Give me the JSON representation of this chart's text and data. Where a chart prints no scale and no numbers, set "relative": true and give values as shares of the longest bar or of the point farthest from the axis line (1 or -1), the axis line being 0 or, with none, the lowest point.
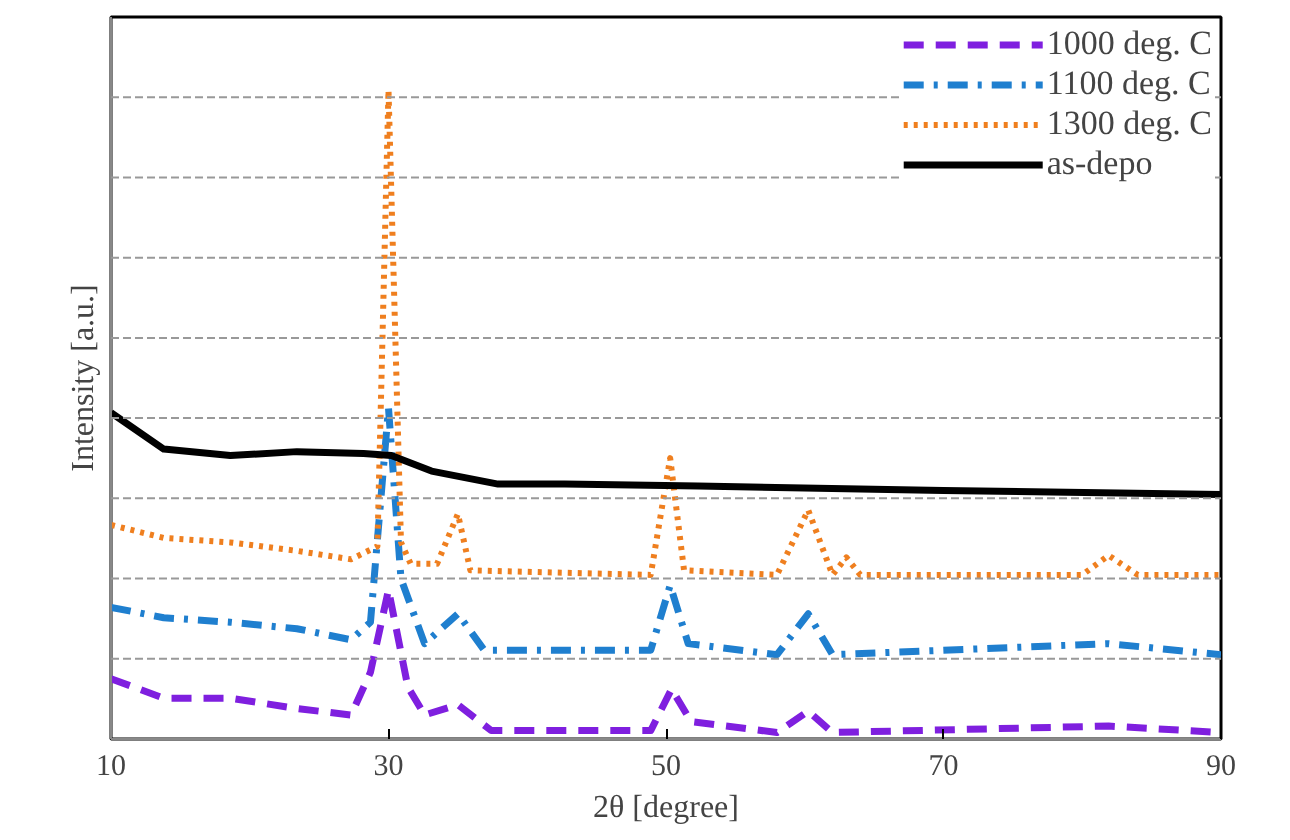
{
  "chart_data": {
    "type": "line",
    "relative": true,
    "xlabel": "2θ [degree]",
    "ylabel": "Intensity [a.u.]",
    "xlim": [
      10,
      90
    ],
    "xticks": [
      10,
      30,
      50,
      70,
      90
    ],
    "tick_labels": "x",
    "grid": "y",
    "legend": "top right",
    "series": [
      {
        "name": "1000 deg. C",
        "color": "#7f1fdf",
        "line_style": "dashed",
        "x": [
          10,
          13.8,
          18.6,
          23.4,
          27.3,
          28.7,
          30.0,
          31.4,
          32.6,
          35.0,
          37.4,
          48.9,
          50.4,
          51.8,
          58,
          60.25,
          62,
          81.9,
          90
        ],
        "values": [
          0.093,
          0.063,
          0.063,
          0.047,
          0.037,
          0.103,
          0.23,
          0.08,
          0.037,
          0.053,
          0.013,
          0.013,
          0.077,
          0.027,
          0.01,
          0.043,
          0.01,
          0.02,
          0.01
        ]
      },
      {
        "name": "1100 deg. C",
        "color": "#1f7fcf",
        "line_style": "dashdot",
        "x": [
          10,
          13.8,
          18.6,
          23.4,
          27.3,
          28.7,
          30.0,
          30.9,
          32.6,
          35.0,
          36.9,
          48.9,
          50.3,
          51.6,
          58,
          60.25,
          62,
          81.9,
          90
        ],
        "values": [
          0.203,
          0.187,
          0.18,
          0.17,
          0.153,
          0.18,
          0.51,
          0.247,
          0.147,
          0.193,
          0.137,
          0.137,
          0.237,
          0.147,
          0.13,
          0.193,
          0.13,
          0.147,
          0.13
        ]
      },
      {
        "name": "1300 deg. C",
        "color": "#ef7f1f",
        "line_style": "dotted",
        "x": [
          10,
          13.8,
          18.6,
          23.4,
          27.3,
          29.2,
          30.0,
          30.9,
          31.6,
          33.5,
          35.0,
          35.9,
          48.9,
          50.3,
          51.3,
          58,
          60.25,
          62,
          63,
          64,
          80,
          81.9,
          84,
          90
        ],
        "values": [
          0.33,
          0.31,
          0.303,
          0.29,
          0.277,
          0.297,
          1.0,
          0.303,
          0.27,
          0.27,
          0.347,
          0.26,
          0.253,
          0.433,
          0.26,
          0.253,
          0.353,
          0.253,
          0.28,
          0.253,
          0.253,
          0.283,
          0.253,
          0.253
        ]
      },
      {
        "name": "as-depo",
        "color": "#000000",
        "line_style": "solid",
        "x": [
          10,
          13.8,
          18.6,
          23.4,
          28.2,
          30.2,
          33.1,
          37.9,
          42.7,
          52.3,
          70,
          90
        ],
        "values": [
          0.503,
          0.447,
          0.437,
          0.443,
          0.44,
          0.437,
          0.413,
          0.393,
          0.393,
          0.39,
          0.383,
          0.377
        ]
      }
    ]
  }
}
